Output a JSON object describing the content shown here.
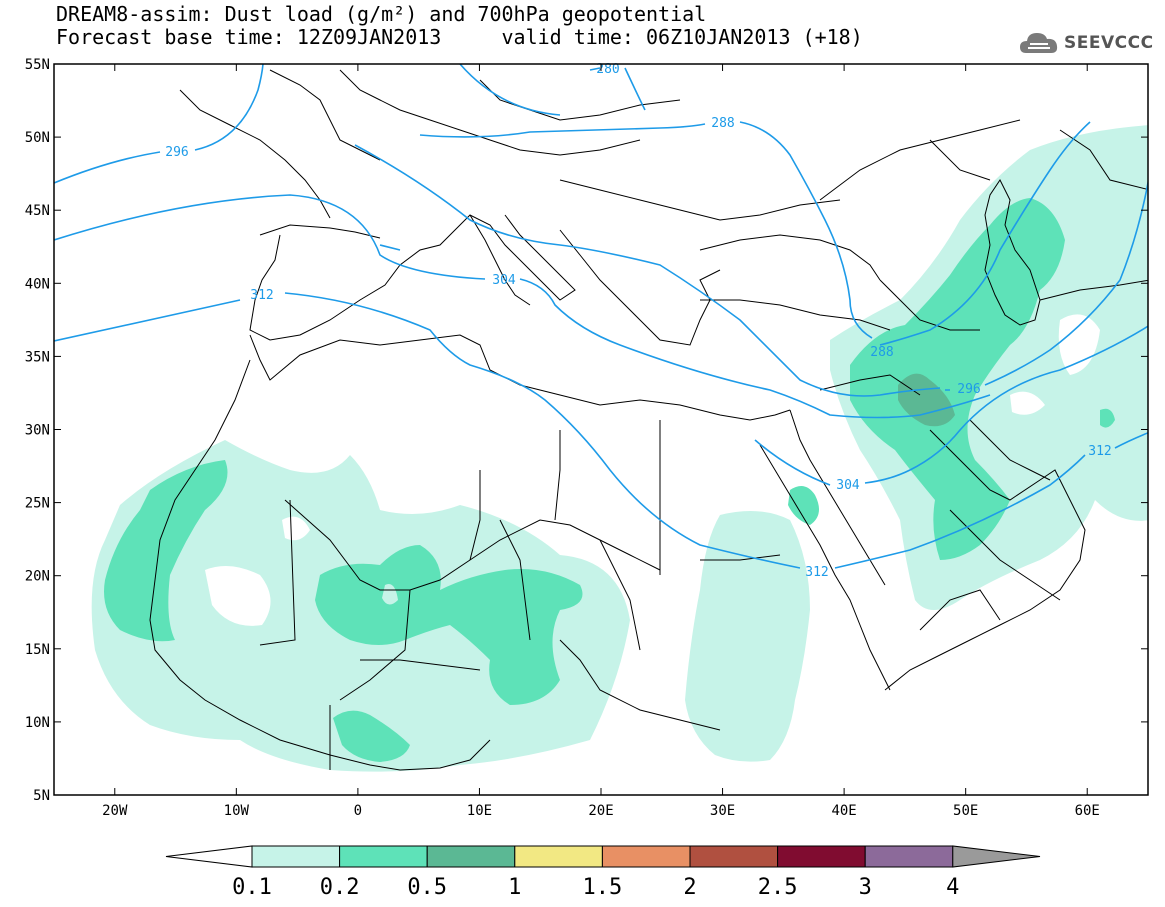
{
  "title": {
    "line1": "DREAM8-assim: Dust load (g/m²) and 700hPa geopotential",
    "line2": "Forecast base time: 12Z09JAN2013     valid time: 06Z10JAN2013 (+18)"
  },
  "logo": {
    "text": "SEEVCCC",
    "icon": "cloud-icon"
  },
  "map": {
    "lon_range": [
      -25,
      65
    ],
    "lat_range": [
      5,
      55
    ],
    "lat_ticks": [
      "55N",
      "50N",
      "45N",
      "40N",
      "35N",
      "30N",
      "25N",
      "20N",
      "15N",
      "10N",
      "5N"
    ],
    "lon_ticks": [
      "20W",
      "10W",
      "0",
      "10E",
      "20E",
      "30E",
      "40E",
      "50E",
      "60E"
    ],
    "contour_labels": [
      "296",
      "288",
      "304",
      "312",
      "280",
      "288",
      "296",
      "304",
      "312",
      "312"
    ]
  },
  "colorbar": {
    "levels": [
      "0.1",
      "0.2",
      "0.5",
      "1",
      "1.5",
      "2",
      "2.5",
      "3",
      "4"
    ],
    "colors": [
      "#ffffff",
      "#c6f3e8",
      "#5ee2b8",
      "#5bb894",
      "#f2e883",
      "#e89064",
      "#b05040",
      "#800c30",
      "#8c6a9a",
      "#9a9a9a"
    ]
  },
  "colors": {
    "dust_low": "#c6f3e8",
    "dust_mid": "#5ee2b8",
    "dust_high": "#5bb894",
    "contour": "#1e9be8",
    "coast": "#000000"
  }
}
